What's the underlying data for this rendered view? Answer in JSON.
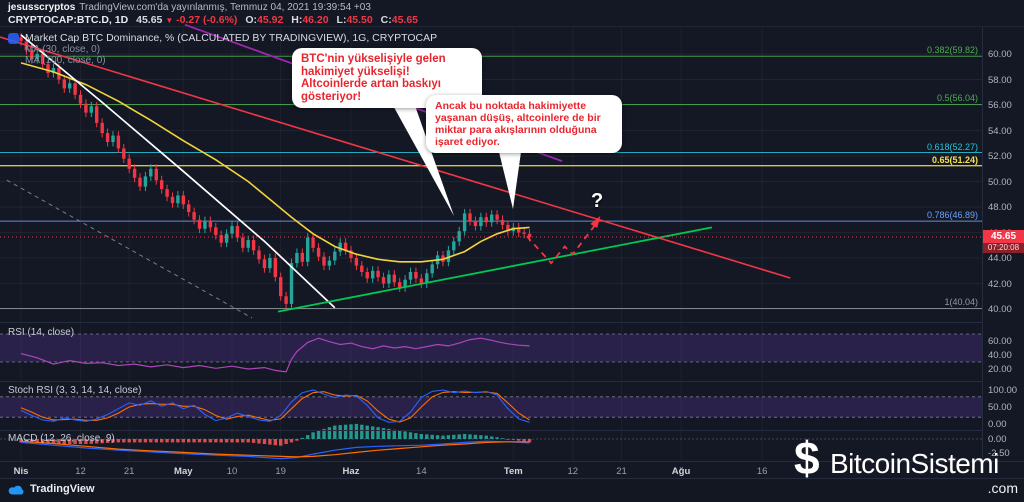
{
  "header": {
    "byline_user": "jesusscryptos",
    "byline_rest": "TradingView.com'da yayınlanmış, Temmuz 04, 2021 19:39:54 +03",
    "symbol": "CRYPTOCAP:BTC.D, 1D",
    "last": "45.65",
    "down_arrow": "▼",
    "change": "-0.27 (-0.6%)",
    "o_label": "O:",
    "o": "45.92",
    "h_label": "H:",
    "h": "46.20",
    "l_label": "L:",
    "l": "45.50",
    "c_label": "C:",
    "c": "45.65"
  },
  "legend": {
    "title": "Market Cap BTC Dominance, % (CALCULATED BY TRADINGVIEW), 1G, CRYPTOCAP",
    "ma1": "MA (30, close, 0)",
    "ma2": "MA (100, close, 0)"
  },
  "annotations": {
    "bubble1": "BTC'nin yükselişiyle gelen hakimiyet yükselişi! Altcoinlerde artan baskıyı gösteriyor!",
    "bubble2": "Ancak bu noktada hakimiyette yaşanan düşüş, altcoinlere de bir miktar para akışlarının olduğuna işaret ediyor.",
    "question_mark": "?"
  },
  "price_axis": {
    "labels": [
      {
        "label": "60.00",
        "value": 60
      },
      {
        "label": "58.00",
        "value": 58
      },
      {
        "label": "56.00",
        "value": 56
      },
      {
        "label": "54.00",
        "value": 54
      },
      {
        "label": "52.00",
        "value": 52
      },
      {
        "label": "50.00",
        "value": 50
      },
      {
        "label": "48.00",
        "value": 48
      },
      {
        "label": "46.00",
        "value": 46
      },
      {
        "label": "44.00",
        "value": 44
      },
      {
        "label": "42.00",
        "value": 42
      },
      {
        "label": "40.00",
        "value": 40
      }
    ],
    "last_price": "45.65",
    "countdown": "07:20:08"
  },
  "time_axis": {
    "ticks": [
      {
        "label": "Nis",
        "day": 0,
        "month": true
      },
      {
        "label": "12",
        "day": 11
      },
      {
        "label": "21",
        "day": 20
      },
      {
        "label": "May",
        "day": 30,
        "month": true
      },
      {
        "label": "10",
        "day": 39
      },
      {
        "label": "19",
        "day": 48
      },
      {
        "label": "Haz",
        "day": 61,
        "month": true
      },
      {
        "label": "14",
        "day": 74
      },
      {
        "label": "Tem",
        "day": 91,
        "month": true
      },
      {
        "label": "12",
        "day": 102
      },
      {
        "label": "21",
        "day": 111
      },
      {
        "label": "Ağu",
        "day": 122,
        "month": true
      },
      {
        "label": "16",
        "day": 137
      }
    ]
  },
  "indicators": {
    "rsi_label": "RSI (14, close)",
    "rsi_ticks": [
      {
        "label": "60.00",
        "v": 60
      },
      {
        "label": "40.00",
        "v": 40
      },
      {
        "label": "20.00",
        "v": 20
      }
    ],
    "stoch_label": "Stoch RSI (3, 3, 14, 14, close)",
    "stoch_ticks": [
      {
        "label": "100.00",
        "v": 100
      },
      {
        "label": "50.00",
        "v": 50
      },
      {
        "label": "0.00",
        "v": 0
      }
    ],
    "macd_label": "MACD (12, 26, close, 9)",
    "macd_ticks": [
      {
        "label": "0.00",
        "v": 0
      },
      {
        "label": "-2.50",
        "v": -2.5
      }
    ]
  },
  "footer": {
    "brand": "TradingView"
  },
  "watermark": {
    "logo_glyph": "$",
    "name": "BitcoinSistemi",
    "tld": ".com"
  },
  "chart_data": {
    "type": "candlestick",
    "title": "Market Cap BTC Dominance, % (CALCULATED BY TRADINGVIEW)",
    "timeframe": "1G",
    "symbol": "CRYPTOCAP:BTC.D",
    "date_range": [
      "2021-04-01",
      "2021-07-04"
    ],
    "ylim": [
      39.2,
      61.7
    ],
    "current_price": 45.65,
    "first_open": 61.3,
    "closes": [
      61.0,
      60.3,
      59.6,
      60.0,
      59.2,
      58.5,
      58.9,
      58.0,
      57.3,
      57.7,
      56.8,
      56.1,
      55.4,
      55.9,
      54.6,
      53.8,
      53.1,
      53.6,
      52.6,
      51.8,
      51.0,
      50.3,
      49.6,
      50.4,
      51.0,
      50.1,
      49.4,
      48.8,
      48.3,
      48.9,
      48.2,
      47.6,
      47.0,
      46.3,
      46.9,
      46.4,
      45.8,
      45.2,
      45.9,
      46.5,
      45.6,
      44.8,
      45.4,
      44.6,
      43.9,
      43.2,
      44.0,
      42.5,
      41.0,
      40.4,
      43.6,
      44.4,
      43.7,
      45.6,
      44.8,
      44.1,
      43.4,
      43.8,
      44.5,
      45.2,
      44.6,
      44.0,
      43.4,
      42.9,
      42.4,
      43.0,
      42.5,
      42.0,
      42.7,
      42.1,
      41.7,
      42.3,
      42.9,
      42.4,
      42.0,
      42.8,
      43.5,
      44.2,
      43.7,
      44.6,
      45.3,
      46.1,
      47.5,
      46.9,
      46.5,
      47.2,
      46.8,
      47.4,
      47.0,
      46.6,
      46.1,
      46.4,
      46.0,
      45.9,
      45.65
    ],
    "fib_levels": [
      {
        "label": "0.382(59.82)",
        "value": 59.82,
        "color": "#4caf50",
        "bold": false
      },
      {
        "label": "0.5(56.04)",
        "value": 56.04,
        "color": "#4caf50",
        "bold": false
      },
      {
        "label": "0.618(52.27)",
        "value": 52.27,
        "color": "#26c6da",
        "bold": false
      },
      {
        "label": "0.65(51.24)",
        "value": 51.24,
        "color": "#f7e24b",
        "bold": true
      },
      {
        "label": "0.786(46.89)",
        "value": 46.89,
        "color": "#6aa3f7",
        "bold": false
      },
      {
        "label": "1(40.04)",
        "value": 40.04,
        "color": "#9598a1",
        "bold": false
      }
    ],
    "overlays": {
      "ma_yellow": [
        [
          0,
          59.3
        ],
        [
          6,
          58.6
        ],
        [
          12,
          57.6
        ],
        [
          18,
          56.3
        ],
        [
          24,
          54.8
        ],
        [
          30,
          53.2
        ],
        [
          36,
          51.7
        ],
        [
          42,
          50.0
        ],
        [
          46,
          48.6
        ],
        [
          50,
          47.2
        ],
        [
          54,
          45.9
        ],
        [
          58,
          44.9
        ],
        [
          62,
          44.3
        ],
        [
          66,
          43.9
        ],
        [
          70,
          43.7
        ],
        [
          74,
          43.7
        ],
        [
          78,
          43.9
        ],
        [
          82,
          44.5
        ],
        [
          85,
          45.3
        ],
        [
          88,
          45.9
        ],
        [
          91,
          46.3
        ],
        [
          94,
          46.4
        ]
      ],
      "trendline_white": [
        [
          0,
          61.5
        ],
        [
          15,
          56.2
        ],
        [
          30,
          50.8
        ],
        [
          45,
          45.3
        ],
        [
          58,
          40.1
        ]
      ],
      "trendline_red": [
        [
          -3.9,
          61.33
        ],
        [
          142.2,
          42.43
        ]
      ],
      "trendline_purple": [
        [
          30.3,
          62.3
        ],
        [
          100,
          51.6
        ]
      ],
      "trendline_green": [
        [
          47.5,
          39.8
        ],
        [
          127.7,
          46.4
        ]
      ],
      "dashed_gray": [
        [
          -2.6,
          50.1
        ],
        [
          42.7,
          39.3
        ]
      ],
      "projection_dashed_red": [
        [
          93.5,
          45.7
        ],
        [
          98,
          43.6
        ],
        [
          100.5,
          44.9
        ],
        [
          102,
          44.3
        ],
        [
          106.7,
          46.9
        ]
      ]
    },
    "rsi": {
      "bands": [
        70,
        30
      ],
      "series": [
        [
          0,
          42
        ],
        [
          3,
          36
        ],
        [
          6,
          27
        ],
        [
          9,
          32
        ],
        [
          12,
          28
        ],
        [
          15,
          29
        ],
        [
          18,
          25
        ],
        [
          21,
          27
        ],
        [
          24,
          23
        ],
        [
          27,
          26
        ],
        [
          30,
          22
        ],
        [
          33,
          25
        ],
        [
          36,
          21
        ],
        [
          39,
          24
        ],
        [
          42,
          20
        ],
        [
          45,
          22
        ],
        [
          47,
          18
        ],
        [
          49,
          16
        ],
        [
          50,
          34
        ],
        [
          51,
          45
        ],
        [
          53,
          58
        ],
        [
          55,
          64
        ],
        [
          57,
          59
        ],
        [
          59,
          55
        ],
        [
          61,
          57
        ],
        [
          63,
          52
        ],
        [
          65,
          49
        ],
        [
          67,
          53
        ],
        [
          69,
          50
        ],
        [
          71,
          52
        ],
        [
          73,
          49
        ],
        [
          75,
          52
        ],
        [
          77,
          55
        ],
        [
          79,
          53
        ],
        [
          81,
          57
        ],
        [
          83,
          62
        ],
        [
          85,
          64
        ],
        [
          87,
          61
        ],
        [
          88,
          59
        ],
        [
          90,
          56
        ],
        [
          92,
          54
        ],
        [
          94,
          53
        ]
      ]
    },
    "stoch": {
      "bands": [
        80,
        20
      ],
      "k": [
        [
          0,
          40
        ],
        [
          2,
          25
        ],
        [
          4,
          12
        ],
        [
          6,
          8
        ],
        [
          8,
          18
        ],
        [
          10,
          12
        ],
        [
          12,
          8
        ],
        [
          14,
          15
        ],
        [
          16,
          28
        ],
        [
          18,
          45
        ],
        [
          20,
          62
        ],
        [
          22,
          55
        ],
        [
          24,
          68
        ],
        [
          26,
          52
        ],
        [
          28,
          62
        ],
        [
          30,
          45
        ],
        [
          32,
          55
        ],
        [
          34,
          28
        ],
        [
          36,
          10
        ],
        [
          38,
          18
        ],
        [
          40,
          32
        ],
        [
          42,
          22
        ],
        [
          44,
          12
        ],
        [
          46,
          8
        ],
        [
          48,
          25
        ],
        [
          50,
          65
        ],
        [
          52,
          92
        ],
        [
          54,
          100
        ],
        [
          56,
          88
        ],
        [
          58,
          78
        ],
        [
          60,
          85
        ],
        [
          62,
          82
        ],
        [
          64,
          55
        ],
        [
          66,
          18
        ],
        [
          68,
          5
        ],
        [
          70,
          8
        ],
        [
          72,
          35
        ],
        [
          74,
          78
        ],
        [
          76,
          96
        ],
        [
          78,
          100
        ],
        [
          80,
          92
        ],
        [
          82,
          97
        ],
        [
          84,
          92
        ],
        [
          86,
          96
        ],
        [
          88,
          85
        ],
        [
          90,
          45
        ],
        [
          92,
          15
        ],
        [
          94,
          5
        ]
      ],
      "d": [
        [
          0,
          48
        ],
        [
          2,
          35
        ],
        [
          4,
          20
        ],
        [
          6,
          12
        ],
        [
          8,
          13
        ],
        [
          10,
          14
        ],
        [
          12,
          11
        ],
        [
          14,
          11
        ],
        [
          16,
          18
        ],
        [
          18,
          32
        ],
        [
          20,
          50
        ],
        [
          22,
          58
        ],
        [
          24,
          60
        ],
        [
          26,
          58
        ],
        [
          28,
          58
        ],
        [
          30,
          52
        ],
        [
          32,
          52
        ],
        [
          34,
          42
        ],
        [
          36,
          25
        ],
        [
          38,
          14
        ],
        [
          40,
          22
        ],
        [
          42,
          26
        ],
        [
          44,
          18
        ],
        [
          46,
          11
        ],
        [
          48,
          15
        ],
        [
          50,
          45
        ],
        [
          52,
          75
        ],
        [
          54,
          92
        ],
        [
          56,
          95
        ],
        [
          58,
          85
        ],
        [
          60,
          82
        ],
        [
          62,
          84
        ],
        [
          64,
          68
        ],
        [
          66,
          38
        ],
        [
          68,
          14
        ],
        [
          70,
          6
        ],
        [
          72,
          18
        ],
        [
          74,
          50
        ],
        [
          76,
          80
        ],
        [
          78,
          93
        ],
        [
          80,
          95
        ],
        [
          82,
          93
        ],
        [
          84,
          93
        ],
        [
          86,
          94
        ],
        [
          88,
          90
        ],
        [
          90,
          62
        ],
        [
          92,
          32
        ],
        [
          94,
          12
        ]
      ]
    },
    "macd": {
      "macd": [
        [
          0,
          -0.6
        ],
        [
          6,
          -1.1
        ],
        [
          12,
          -1.6
        ],
        [
          18,
          -2.0
        ],
        [
          24,
          -2.3
        ],
        [
          30,
          -2.6
        ],
        [
          36,
          -2.9
        ],
        [
          42,
          -3.1
        ],
        [
          48,
          -3.5
        ],
        [
          51,
          -3.3
        ],
        [
          54,
          -2.7
        ],
        [
          58,
          -2.0
        ],
        [
          62,
          -1.5
        ],
        [
          66,
          -1.3
        ],
        [
          70,
          -1.2
        ],
        [
          74,
          -1.1
        ],
        [
          78,
          -0.9
        ],
        [
          82,
          -0.6
        ],
        [
          86,
          -0.4
        ],
        [
          90,
          -0.5
        ],
        [
          94,
          -0.7
        ]
      ],
      "signal": [
        [
          0,
          -0.4
        ],
        [
          6,
          -0.8
        ],
        [
          12,
          -1.3
        ],
        [
          18,
          -1.8
        ],
        [
          24,
          -2.1
        ],
        [
          30,
          -2.4
        ],
        [
          36,
          -2.7
        ],
        [
          42,
          -2.9
        ],
        [
          48,
          -3.1
        ],
        [
          51,
          -3.2
        ],
        [
          54,
          -3.1
        ],
        [
          58,
          -2.8
        ],
        [
          62,
          -2.4
        ],
        [
          66,
          -2.0
        ],
        [
          70,
          -1.7
        ],
        [
          74,
          -1.4
        ],
        [
          78,
          -1.1
        ],
        [
          82,
          -0.9
        ],
        [
          86,
          -0.6
        ],
        [
          90,
          -0.5
        ],
        [
          94,
          -0.5
        ]
      ]
    },
    "colors": {
      "up": "#26a69a",
      "down": "#f23645",
      "ma_yellow": "#f2d43c",
      "trend_white": "#ffffff",
      "trend_red": "#f23645",
      "trend_purple": "#9c27b0",
      "trend_green": "#00c853",
      "rsi": "#ab47bc",
      "stoch_k": "#2962ff",
      "stoch_d": "#ff6d00",
      "macd_line": "#2962ff",
      "macd_signal": "#ff6d00",
      "hist_up": "#26a69a",
      "hist_down": "#ef5350"
    }
  }
}
